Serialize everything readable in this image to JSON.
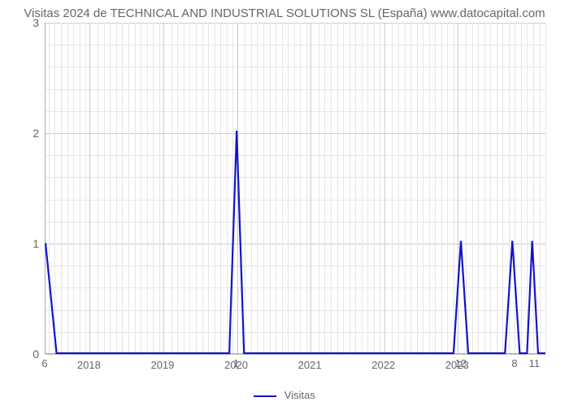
{
  "title": "Visitas 2024 de TECHNICAL AND INDUSTRIAL SOLUTIONS SL (España) www.datocapital.com",
  "chart": {
    "type": "line",
    "background_color": "#ffffff",
    "grid_color_major": "#cccccc",
    "grid_color_minor": "#e6e6e6",
    "axis_color": "#aaaaaa",
    "text_color": "#666666",
    "title_fontsize": 15,
    "tick_fontsize": 14,
    "line_color": "#1414c8",
    "line_width": 2.2,
    "ylim": [
      0,
      3
    ],
    "yticks": [
      0,
      1,
      2,
      3
    ],
    "minor_y_per_major": 5,
    "x_years": [
      2018,
      2019,
      2020,
      2021,
      2022,
      2023
    ],
    "x_domain": [
      2017.4,
      2024.2
    ],
    "minor_x_step": 0.0833,
    "data_points": [
      {
        "x": 2017.4,
        "y": 1
      },
      {
        "x": 2017.55,
        "y": 0
      },
      {
        "x": 2019.9,
        "y": 0
      },
      {
        "x": 2020.0,
        "y": 2.02
      },
      {
        "x": 2020.1,
        "y": 0
      },
      {
        "x": 2022.95,
        "y": 0
      },
      {
        "x": 2023.05,
        "y": 1.02
      },
      {
        "x": 2023.15,
        "y": 0
      },
      {
        "x": 2023.65,
        "y": 0
      },
      {
        "x": 2023.75,
        "y": 1.02
      },
      {
        "x": 2023.85,
        "y": 0
      },
      {
        "x": 2023.95,
        "y": 0
      },
      {
        "x": 2024.02,
        "y": 1.02
      },
      {
        "x": 2024.1,
        "y": 0
      },
      {
        "x": 2024.2,
        "y": 0
      }
    ],
    "data_labels": [
      {
        "x": 2017.4,
        "text": "6"
      },
      {
        "x": 2020.0,
        "text": "1"
      },
      {
        "x": 2023.05,
        "text": "12"
      },
      {
        "x": 2023.78,
        "text": "8"
      },
      {
        "x": 2024.05,
        "text": "11"
      }
    ],
    "legend": {
      "label": "Visitas",
      "color": "#1414c8"
    }
  }
}
